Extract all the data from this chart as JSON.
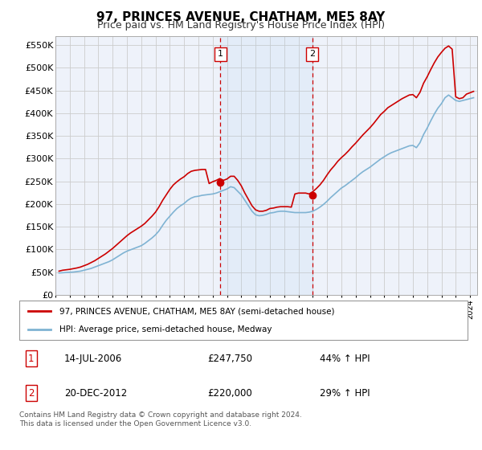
{
  "title": "97, PRINCES AVENUE, CHATHAM, ME5 8AY",
  "subtitle": "Price paid vs. HM Land Registry's House Price Index (HPI)",
  "title_fontsize": 11,
  "subtitle_fontsize": 9,
  "ylim": [
    0,
    570000
  ],
  "yticks": [
    0,
    50000,
    100000,
    150000,
    200000,
    250000,
    300000,
    350000,
    400000,
    450000,
    500000,
    550000
  ],
  "ytick_labels": [
    "£0",
    "£50K",
    "£100K",
    "£150K",
    "£200K",
    "£250K",
    "£300K",
    "£350K",
    "£400K",
    "£450K",
    "£500K",
    "£550K"
  ],
  "xlim_start": 1995.25,
  "xlim_end": 2024.5,
  "hpi_color": "#7fb3d3",
  "price_color": "#cc0000",
  "vline_color": "#cc0000",
  "grid_color": "#cccccc",
  "background_color": "#ffffff",
  "plot_bg_color": "#eef2fa",
  "transaction1_date": 2006.54,
  "transaction1_price": 247750,
  "transaction2_date": 2012.97,
  "transaction2_price": 220000,
  "legend_text_red": "97, PRINCES AVENUE, CHATHAM, ME5 8AY (semi-detached house)",
  "legend_text_blue": "HPI: Average price, semi-detached house, Medway",
  "table_row1": [
    "1",
    "14-JUL-2006",
    "£247,750",
    "44% ↑ HPI"
  ],
  "table_row2": [
    "2",
    "20-DEC-2012",
    "£220,000",
    "29% ↑ HPI"
  ],
  "footer": "Contains HM Land Registry data © Crown copyright and database right 2024.\nThis data is licensed under the Open Government Licence v3.0.",
  "hpi_data_x": [
    1995.25,
    1995.5,
    1995.75,
    1996.0,
    1996.25,
    1996.5,
    1996.75,
    1997.0,
    1997.25,
    1997.5,
    1997.75,
    1998.0,
    1998.25,
    1998.5,
    1998.75,
    1999.0,
    1999.25,
    1999.5,
    1999.75,
    2000.0,
    2000.25,
    2000.5,
    2000.75,
    2001.0,
    2001.25,
    2001.5,
    2001.75,
    2002.0,
    2002.25,
    2002.5,
    2002.75,
    2003.0,
    2003.25,
    2003.5,
    2003.75,
    2004.0,
    2004.25,
    2004.5,
    2004.75,
    2005.0,
    2005.25,
    2005.5,
    2005.75,
    2006.0,
    2006.25,
    2006.5,
    2006.75,
    2007.0,
    2007.25,
    2007.5,
    2007.75,
    2008.0,
    2008.25,
    2008.5,
    2008.75,
    2009.0,
    2009.25,
    2009.5,
    2009.75,
    2010.0,
    2010.25,
    2010.5,
    2010.75,
    2011.0,
    2011.25,
    2011.5,
    2011.75,
    2012.0,
    2012.25,
    2012.5,
    2012.75,
    2013.0,
    2013.25,
    2013.5,
    2013.75,
    2014.0,
    2014.25,
    2014.5,
    2014.75,
    2015.0,
    2015.25,
    2015.5,
    2015.75,
    2016.0,
    2016.25,
    2016.5,
    2016.75,
    2017.0,
    2017.25,
    2017.5,
    2017.75,
    2018.0,
    2018.25,
    2018.5,
    2018.75,
    2019.0,
    2019.25,
    2019.5,
    2019.75,
    2020.0,
    2020.25,
    2020.5,
    2020.75,
    2021.0,
    2021.25,
    2021.5,
    2021.75,
    2022.0,
    2022.25,
    2022.5,
    2022.75,
    2023.0,
    2023.25,
    2023.5,
    2023.75,
    2024.0,
    2024.25
  ],
  "hpi_data_y": [
    48000,
    48500,
    49000,
    49500,
    50000,
    51000,
    52000,
    54000,
    56000,
    58000,
    61000,
    64000,
    67000,
    70000,
    73000,
    77000,
    82000,
    87000,
    92000,
    96000,
    99000,
    102000,
    105000,
    108000,
    113000,
    119000,
    125000,
    132000,
    141000,
    153000,
    164000,
    173000,
    182000,
    190000,
    196000,
    201000,
    208000,
    213000,
    216000,
    217000,
    219000,
    220000,
    221000,
    222000,
    224000,
    227000,
    230000,
    233000,
    238000,
    236000,
    228000,
    220000,
    208000,
    196000,
    184000,
    176000,
    174000,
    175000,
    177000,
    180000,
    181000,
    183000,
    184000,
    184000,
    183000,
    182000,
    181000,
    181000,
    181000,
    181000,
    182000,
    184000,
    188000,
    193000,
    199000,
    206000,
    214000,
    221000,
    228000,
    235000,
    240000,
    246000,
    252000,
    258000,
    265000,
    271000,
    276000,
    281000,
    287000,
    293000,
    299000,
    304000,
    309000,
    313000,
    316000,
    319000,
    322000,
    325000,
    328000,
    329000,
    324000,
    335000,
    353000,
    367000,
    383000,
    398000,
    411000,
    421000,
    434000,
    440000,
    434000,
    428000,
    426000,
    428000,
    430000,
    432000,
    434000
  ],
  "price_data_x": [
    1995.25,
    1995.5,
    1995.75,
    1996.0,
    1996.25,
    1996.5,
    1996.75,
    1997.0,
    1997.25,
    1997.5,
    1997.75,
    1998.0,
    1998.25,
    1998.5,
    1998.75,
    1999.0,
    1999.25,
    1999.5,
    1999.75,
    2000.0,
    2000.25,
    2000.5,
    2000.75,
    2001.0,
    2001.25,
    2001.5,
    2001.75,
    2002.0,
    2002.25,
    2002.5,
    2002.75,
    2003.0,
    2003.25,
    2003.5,
    2003.75,
    2004.0,
    2004.25,
    2004.5,
    2004.75,
    2005.0,
    2005.25,
    2005.5,
    2005.75,
    2006.0,
    2006.25,
    2006.5,
    2006.75,
    2007.0,
    2007.25,
    2007.5,
    2007.75,
    2008.0,
    2008.25,
    2008.5,
    2008.75,
    2009.0,
    2009.25,
    2009.5,
    2009.75,
    2010.0,
    2010.25,
    2010.5,
    2010.75,
    2011.0,
    2011.25,
    2011.5,
    2011.75,
    2012.0,
    2012.25,
    2012.5,
    2012.75,
    2013.0,
    2013.25,
    2013.5,
    2013.75,
    2014.0,
    2014.25,
    2014.5,
    2014.75,
    2015.0,
    2015.25,
    2015.5,
    2015.75,
    2016.0,
    2016.25,
    2016.5,
    2016.75,
    2017.0,
    2017.25,
    2017.5,
    2017.75,
    2018.0,
    2018.25,
    2018.5,
    2018.75,
    2019.0,
    2019.25,
    2019.5,
    2019.75,
    2020.0,
    2020.25,
    2020.5,
    2020.75,
    2021.0,
    2021.25,
    2021.5,
    2021.75,
    2022.0,
    2022.25,
    2022.5,
    2022.75,
    2023.0,
    2023.25,
    2023.5,
    2023.75,
    2024.0,
    2024.25
  ],
  "price_data_y": [
    52000,
    54000,
    55000,
    56000,
    57500,
    59000,
    61000,
    64000,
    67000,
    71000,
    75000,
    80000,
    85000,
    90000,
    96000,
    102000,
    109000,
    116000,
    123000,
    130000,
    136000,
    141000,
    146000,
    151000,
    157000,
    165000,
    173000,
    182000,
    194000,
    208000,
    220000,
    232000,
    242000,
    249000,
    255000,
    260000,
    267000,
    272000,
    274000,
    275000,
    276000,
    276000,
    245000,
    249000,
    252000,
    256000,
    252000,
    255000,
    261000,
    261000,
    252000,
    240000,
    224000,
    210000,
    196000,
    187000,
    184000,
    184000,
    186000,
    190000,
    191000,
    193000,
    194000,
    194000,
    194000,
    193000,
    222000,
    224000,
    224000,
    224000,
    222000,
    227000,
    234000,
    242000,
    252000,
    264000,
    275000,
    284000,
    294000,
    302000,
    309000,
    317000,
    326000,
    334000,
    343000,
    352000,
    360000,
    368000,
    377000,
    387000,
    397000,
    404000,
    412000,
    417000,
    422000,
    427000,
    432000,
    436000,
    440000,
    441000,
    434000,
    446000,
    466000,
    480000,
    496000,
    511000,
    524000,
    534000,
    543000,
    548000,
    541000,
    436000,
    432000,
    434000,
    442000,
    445000,
    448000
  ]
}
